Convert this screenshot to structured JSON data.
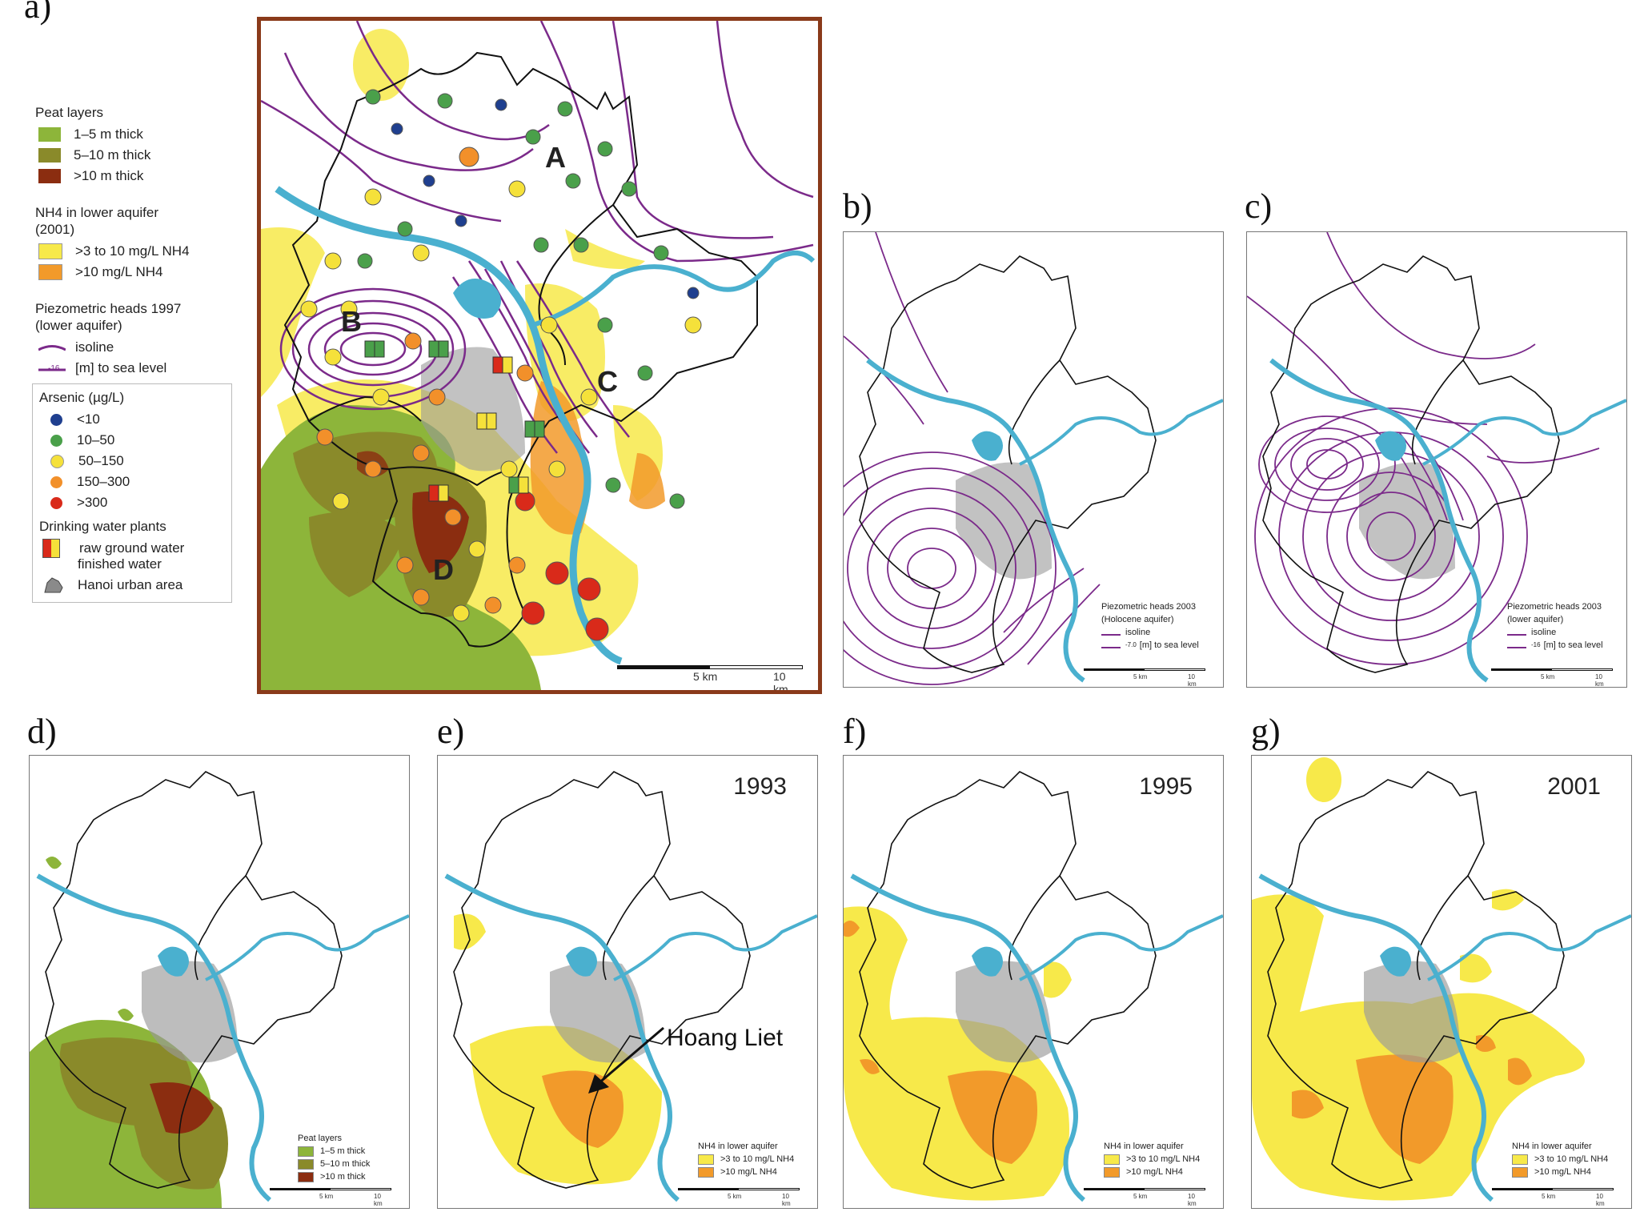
{
  "panel_labels": {
    "a": "a)",
    "b": "b)",
    "c": "c)",
    "d": "d)",
    "e": "e)",
    "f": "f)",
    "g": "g)"
  },
  "legend_a": {
    "peat_title": "Peat layers",
    "peat": [
      {
        "label": "1–5 m thick",
        "color": "#8db53a"
      },
      {
        "label": "5–10 m thick",
        "color": "#8a8a2a"
      },
      {
        "label": ">10 m thick",
        "color": "#8b2d10"
      }
    ],
    "nh4_title": "NH4 in lower aquifer (2001)",
    "nh4": [
      {
        "label": ">3 to 10 mg/L NH4",
        "color": "#f7e94a"
      },
      {
        "label": ">10 mg/L NH4",
        "color": "#f29a2a"
      }
    ],
    "piezo_title": "Piezometric heads 1997 (lower aquifer)",
    "piezo": [
      {
        "label": "isoline"
      },
      {
        "label": "[m] to sea level",
        "marker": "-16"
      }
    ],
    "arsenic_title": "Arsenic (µg/L)",
    "arsenic": [
      {
        "label": "<10",
        "color": "#1f3f8f"
      },
      {
        "label": "10–50",
        "color": "#4aa04a"
      },
      {
        "label": "50–150",
        "color": "#f5e13a"
      },
      {
        "label": "150–300",
        "color": "#f2902a"
      },
      {
        "label": ">300",
        "color": "#d92a1a"
      }
    ],
    "plants_title": "Drinking water plants",
    "plants": [
      {
        "label": "raw ground water"
      },
      {
        "label": "finished water"
      }
    ],
    "urban_label": "Hanoi urban area",
    "icons": {
      "urban": "urban-area-icon"
    }
  },
  "zones": [
    "A",
    "B",
    "C",
    "D"
  ],
  "scale": {
    "km5": "5 km",
    "km10": "10 km"
  },
  "panel_b": {
    "legend_title": "Piezometric heads 2003",
    "legend_sub": "(Holocene aquifer)",
    "isoline": "isoline",
    "level": "[m] to sea level",
    "marker": "-7.0"
  },
  "panel_c": {
    "legend_title": "Piezometric heads 2003",
    "legend_sub": "(lower aquifer)",
    "isoline": "isoline",
    "level": "[m] to sea level",
    "marker": "-16"
  },
  "panel_d": {
    "legend_title": "Peat layers",
    "items": [
      "1–5 m thick",
      "5–10 m thick",
      ">10 m thick"
    ]
  },
  "panel_e": {
    "year": "1993",
    "annotation": "Hoang Liet",
    "legend_title": "NH4 in lower aquifer",
    "items": [
      ">3 to 10 mg/L NH4",
      ">10 mg/L NH4"
    ]
  },
  "panel_f": {
    "year": "1995",
    "legend_title": "NH4 in lower aquifer",
    "items": [
      ">3 to 10 mg/L NH4",
      ">10 mg/L NH4"
    ]
  },
  "panel_g": {
    "year": "2001",
    "legend_title": "NH4 in lower aquifer",
    "items": [
      ">3 to 10 mg/L NH4",
      ">10 mg/L NH4"
    ]
  },
  "colors": {
    "river": "#4ab0cf",
    "isoline": "#7b2a8a",
    "boundary": "#111111",
    "peat1": "#8db53a",
    "peat2": "#8a8a2a",
    "peat3": "#8b2d10",
    "nh4low": "#f7e94a",
    "nh4high": "#f29a2a",
    "urban": "#9a9a9a"
  }
}
